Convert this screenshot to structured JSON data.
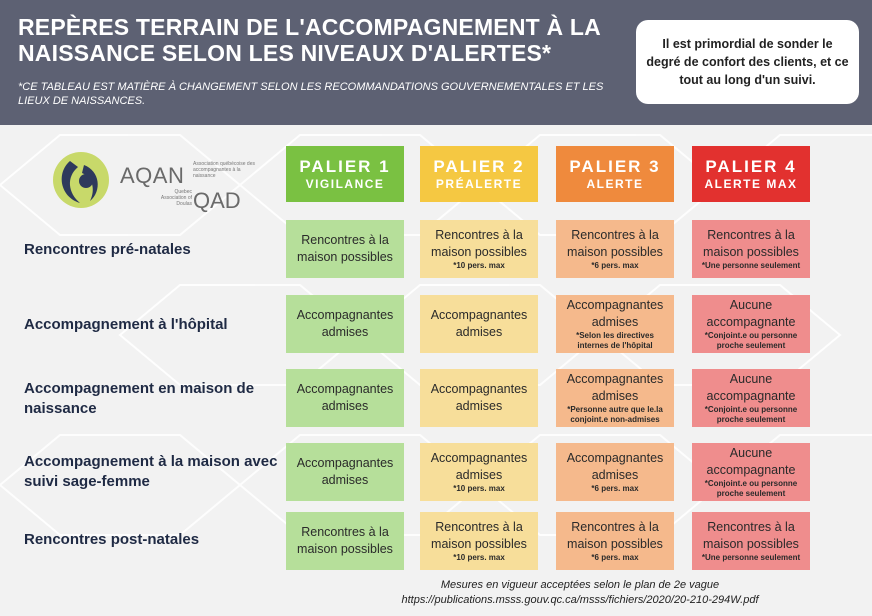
{
  "header": {
    "title": "REPÈRES TERRAIN DE L'ACCOMPAGNEMENT À LA NAISSANCE SELON LES NIVEAUX D'ALERTES*",
    "subtitle": "*CE TABLEAU EST MATIÈRE À CHANGEMENT SELON LES RECOMMANDATIONS GOUVERNEMENTALES ET LES LIEUX DE NAISSANCES.",
    "callout": "Il est primordial de sonder le degré de confort des clients, et ce tout au long d'un suivi."
  },
  "logo": {
    "aqan": "AQAN",
    "aqan_sub": "Association québécoise des accompagnantes à la naissance",
    "qad": "QAD",
    "qad_sub": "Quebec Association of Doulas"
  },
  "tiers": [
    {
      "label": "PALIER 1",
      "level": "VIGILANCE",
      "color": "#7ac142"
    },
    {
      "label": "PALIER 2",
      "level": "PRÉALERTE",
      "color": "#f5c842"
    },
    {
      "label": "PALIER 3",
      "level": "ALERTE",
      "color": "#ef8a3d"
    },
    {
      "label": "PALIER 4",
      "level": "ALERTE MAX",
      "color": "#e2312f"
    }
  ],
  "rows": [
    {
      "label": "Rencontres pré-natales",
      "cells": [
        {
          "text": "Rencontres à la maison possibles",
          "note": ""
        },
        {
          "text": "Rencontres à la maison possibles",
          "note": "*10 pers. max"
        },
        {
          "text": "Rencontres à la maison possibles",
          "note": "*6 pers. max"
        },
        {
          "text": "Rencontres à la maison possibles",
          "note": "*Une personne seulement"
        }
      ]
    },
    {
      "label": "Accompagnement à l'hôpital",
      "cells": [
        {
          "text": "Accompagnantes admises",
          "note": ""
        },
        {
          "text": "Accompagnantes admises",
          "note": ""
        },
        {
          "text": "Accompagnantes admises",
          "note": "*Selon les directives internes de l'hôpital"
        },
        {
          "text": "Aucune accompagnante",
          "note": "*Conjoint.e ou personne proche seulement"
        }
      ]
    },
    {
      "label": "Accompagnement en maison de naissance",
      "cells": [
        {
          "text": "Accompagnantes admises",
          "note": ""
        },
        {
          "text": "Accompagnantes admises",
          "note": ""
        },
        {
          "text": "Accompagnantes admises",
          "note": "*Personne autre que le.la conjoint.e non-admises"
        },
        {
          "text": "Aucune accompagnante",
          "note": "*Conjoint.e ou personne proche seulement"
        }
      ]
    },
    {
      "label": "Accompagnement à la maison avec suivi sage-femme",
      "cells": [
        {
          "text": "Accompagnantes admises",
          "note": ""
        },
        {
          "text": "Accompagnantes admises",
          "note": "*10 pers. max"
        },
        {
          "text": "Accompagnantes admises",
          "note": "*6 pers. max"
        },
        {
          "text": "Aucune accompagnante",
          "note": "*Conjoint.e ou personne proche seulement"
        }
      ]
    },
    {
      "label": "Rencontres post-natales",
      "cells": [
        {
          "text": "Rencontres à la maison possibles",
          "note": ""
        },
        {
          "text": "Rencontres à la maison possibles",
          "note": "*10 pers. max"
        },
        {
          "text": "Rencontres à la maison possibles",
          "note": "*6 pers. max"
        },
        {
          "text": "Rencontres à la maison possibles",
          "note": "*Une personne seulement"
        }
      ]
    }
  ],
  "footer": {
    "line1": "Mesures en vigueur acceptées selon le plan de 2e vague",
    "line2": "https://publications.msss.gouv.qc.ca/msss/fichiers/2020/20-210-294W.pdf"
  }
}
